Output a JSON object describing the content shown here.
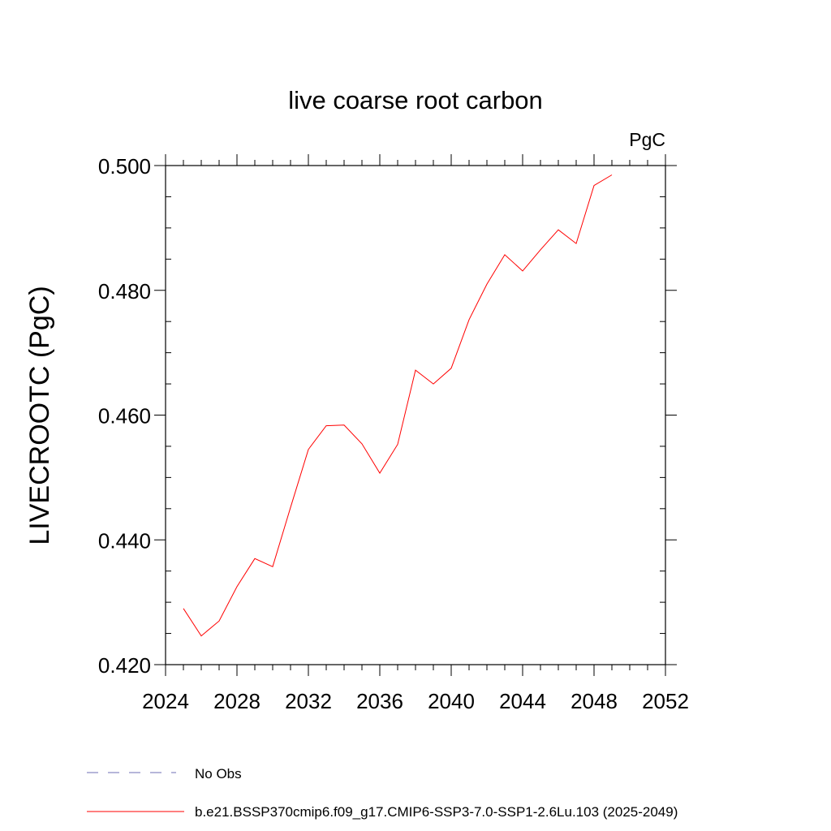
{
  "chart_data": {
    "type": "line",
    "title": "live coarse root carbon",
    "units_label": "PgC",
    "xlabel": "",
    "ylabel": "LIVECROOTC  (PgC)",
    "xlim": [
      2024,
      2052
    ],
    "ylim": [
      0.42,
      0.5
    ],
    "x_major_ticks": [
      2024,
      2028,
      2032,
      2036,
      2040,
      2044,
      2048,
      2052
    ],
    "x_tick_labels": [
      "2024",
      "2028",
      "2032",
      "2036",
      "2040",
      "2044",
      "2048",
      "2052"
    ],
    "y_major_ticks": [
      0.42,
      0.44,
      0.46,
      0.48,
      0.5
    ],
    "y_tick_labels": [
      "0.420",
      "0.440",
      "0.460",
      "0.480",
      "0.500"
    ],
    "series": [
      {
        "name": "b.e21.BSSP370cmip6.f09_g17.CMIP6-SSP3-7.0-SSP1-2.6Lu.103 (2025-2049)",
        "color": "#ff0000",
        "style": "solid",
        "x": [
          2025,
          2026,
          2027,
          2028,
          2029,
          2030,
          2031,
          2032,
          2033,
          2034,
          2035,
          2036,
          2037,
          2038,
          2039,
          2040,
          2041,
          2042,
          2043,
          2044,
          2045,
          2046,
          2047,
          2048,
          2049
        ],
        "values": [
          0.429,
          0.4246,
          0.427,
          0.4325,
          0.437,
          0.4357,
          0.4452,
          0.4545,
          0.4583,
          0.4584,
          0.4554,
          0.4507,
          0.4553,
          0.4672,
          0.465,
          0.4675,
          0.4753,
          0.481,
          0.4857,
          0.4831,
          0.4865,
          0.4897,
          0.4875,
          0.4968,
          0.4985
        ]
      }
    ],
    "legend": [
      {
        "label": "No Obs",
        "color": "#6e6eb4",
        "style": "dashed"
      },
      {
        "label": "b.e21.BSSP370cmip6.f09_g17.CMIP6-SSP3-7.0-SSP1-2.6Lu.103 (2025-2049)",
        "color": "#ff0000",
        "style": "solid"
      }
    ]
  }
}
